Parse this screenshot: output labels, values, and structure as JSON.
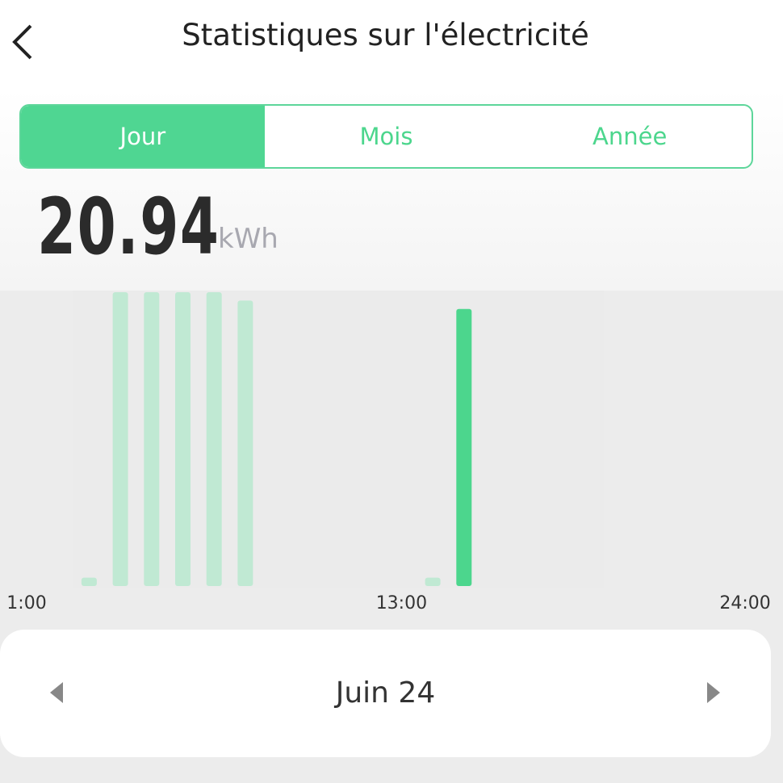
{
  "header": {
    "title": "Statistiques sur l'électricité"
  },
  "tabs": [
    "Jour",
    "Mois",
    "Année"
  ],
  "total": {
    "value": "20.94",
    "unit": "kWh"
  },
  "chart_data": {
    "type": "bar",
    "categories": [
      "1:00",
      null,
      null,
      null,
      null,
      null,
      null,
      null,
      null,
      null,
      null,
      null,
      "13:00",
      null,
      null,
      null,
      null,
      null,
      null,
      null,
      null,
      null,
      null,
      "24:00"
    ],
    "values": [
      0,
      0,
      0.1,
      3.5,
      3.5,
      3.5,
      3.5,
      3.4,
      0,
      0,
      0,
      0,
      0,
      0.1,
      3.3,
      0,
      0,
      0,
      0,
      0,
      0,
      0,
      0,
      0
    ],
    "colors": [
      "#c0e9d3",
      "#c0e9d3",
      "#c0e9d3",
      "#c0e9d3",
      "#c0e9d3",
      "#c0e9d3",
      "#c0e9d3",
      "#c0e9d3",
      "#c0e9d3",
      "#c0e9d3",
      "#c0e9d3",
      "#c0e9d3",
      "#c0e9d3",
      "#c0e9d3",
      "#4cd68d",
      "#c0e9d3",
      "#c0e9d3",
      "#c0e9d3",
      "#c0e9d3",
      "#c0e9d3",
      "#c0e9d3",
      "#c0e9d3",
      "#c0e9d3",
      "#c0e9d3"
    ],
    "ylim": [
      0,
      3.5
    ]
  },
  "date_nav": {
    "label": "Juin 24"
  }
}
